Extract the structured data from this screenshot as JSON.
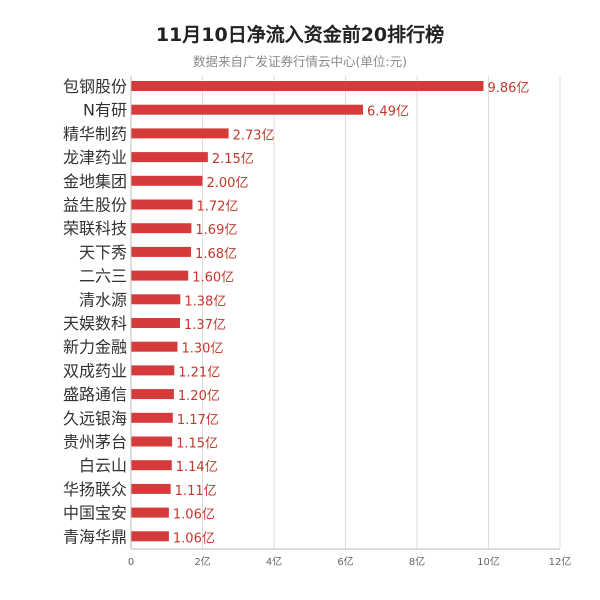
{
  "chart_data": {
    "type": "bar",
    "orientation": "horizontal",
    "title": "11月10日净流入资金前20排行榜",
    "subtitle": "数据来自广发证券行情云中心(单位:元)",
    "categories": [
      "包钢股份",
      "N有研",
      "精华制药",
      "龙津药业",
      "金地集团",
      "益生股份",
      "荣联科技",
      "天下秀",
      "二六三",
      "清水源",
      "天娱数科",
      "新力金融",
      "双成药业",
      "盛路通信",
      "久远银海",
      "贵州茅台",
      "白云山",
      "华扬联众",
      "中国宝安",
      "青海华鼎"
    ],
    "values": [
      9.86,
      6.49,
      2.73,
      2.15,
      2.0,
      1.72,
      1.69,
      1.68,
      1.6,
      1.38,
      1.37,
      1.3,
      1.21,
      1.2,
      1.17,
      1.15,
      1.14,
      1.11,
      1.06,
      1.06
    ],
    "value_labels": [
      "9.86亿",
      "6.49亿",
      "2.73亿",
      "2.15亿",
      "2.00亿",
      "1.72亿",
      "1.69亿",
      "1.68亿",
      "1.60亿",
      "1.38亿",
      "1.37亿",
      "1.30亿",
      "1.21亿",
      "1.20亿",
      "1.17亿",
      "1.15亿",
      "1.14亿",
      "1.11亿",
      "1.06亿",
      "1.06亿"
    ],
    "x_ticks": [
      0,
      2,
      4,
      6,
      8,
      10,
      12
    ],
    "x_tick_labels": [
      "0",
      "2亿",
      "4亿",
      "6亿",
      "8亿",
      "10亿",
      "12亿"
    ],
    "xlim": [
      0,
      12
    ],
    "xlabel": "",
    "ylabel": "",
    "grid": true,
    "legend": false,
    "colors": {
      "bar": "#d63b3b",
      "value_label": "#c0392b",
      "grid": "#dcdcdc",
      "axis": "#bbbbbb"
    }
  }
}
